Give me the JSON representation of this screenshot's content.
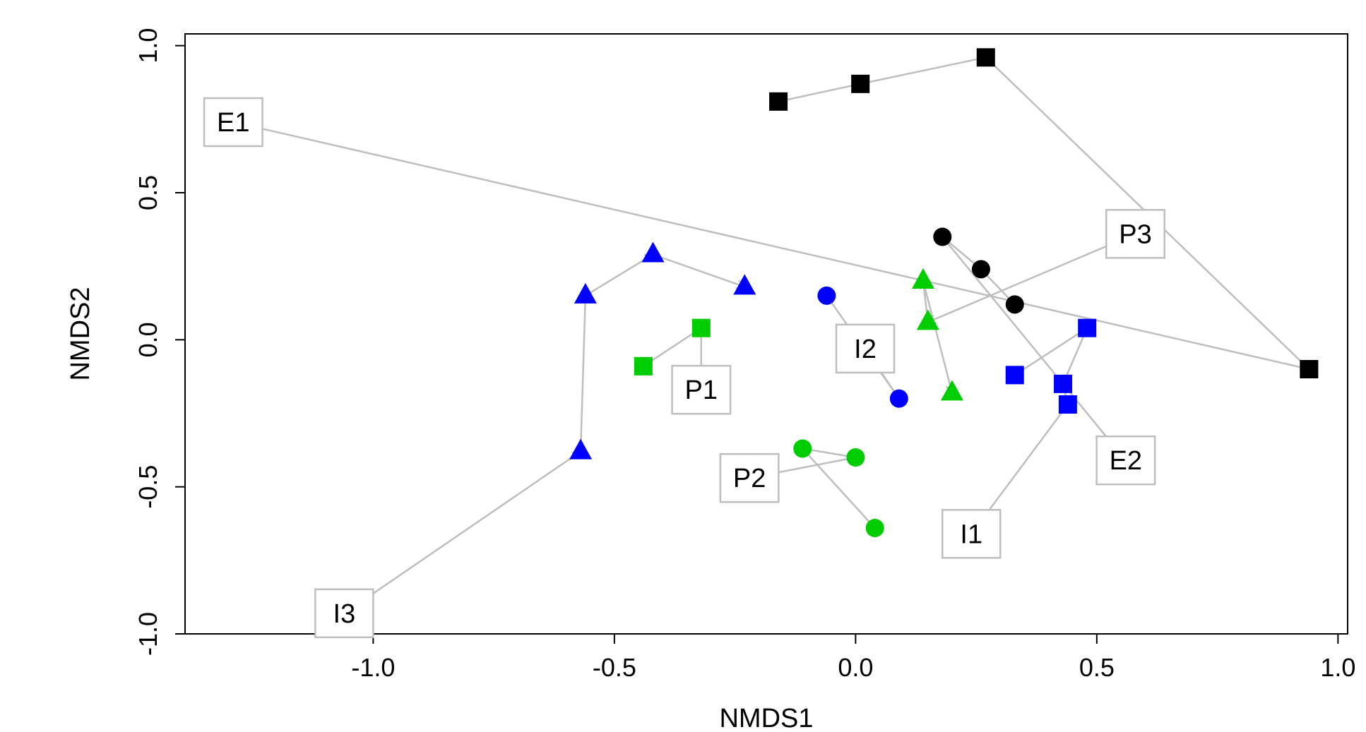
{
  "chart_data": {
    "type": "scatter",
    "xlabel": "NMDS1",
    "ylabel": "NMDS2",
    "xlim": [
      -1.39,
      1.02
    ],
    "ylim": [
      -1.0,
      1.04
    ],
    "xticks": [
      -1.0,
      -0.5,
      0.0,
      0.5,
      1.0
    ],
    "xtick_labels": [
      "-1.0",
      "-0.5",
      "0.0",
      "0.5",
      "1.0"
    ],
    "yticks": [
      -1.0,
      -0.5,
      0.0,
      0.5,
      1.0
    ],
    "ytick_labels": [
      "-1.0",
      "-0.5",
      "0.0",
      "0.5",
      "1.0"
    ],
    "grid": false,
    "arrow_color": "#bebebe",
    "colors": {
      "black": "#000000",
      "blue": "#0000ff",
      "green": "#00cd00"
    },
    "series": [
      {
        "id": "E1",
        "marker": "square",
        "color": "black",
        "points": [
          [
            -0.16,
            0.81
          ],
          [
            0.01,
            0.87
          ],
          [
            0.27,
            0.96
          ],
          [
            0.94,
            -0.1
          ]
        ]
      },
      {
        "id": "E2",
        "marker": "circle",
        "color": "black",
        "points": [
          [
            0.33,
            0.12
          ],
          [
            0.26,
            0.24
          ],
          [
            0.18,
            0.35
          ]
        ]
      },
      {
        "id": "I1",
        "marker": "square",
        "color": "blue",
        "points": [
          [
            0.33,
            -0.12
          ],
          [
            0.48,
            0.04
          ],
          [
            0.43,
            -0.15
          ],
          [
            0.44,
            -0.22
          ]
        ]
      },
      {
        "id": "I2",
        "marker": "circle",
        "color": "blue",
        "points": [
          [
            -0.06,
            0.15
          ],
          [
            0.09,
            -0.2
          ]
        ]
      },
      {
        "id": "I3",
        "marker": "triangle",
        "color": "blue",
        "points": [
          [
            -0.57,
            -0.38
          ],
          [
            -0.56,
            0.15
          ],
          [
            -0.42,
            0.29
          ],
          [
            -0.23,
            0.18
          ]
        ]
      },
      {
        "id": "P1",
        "marker": "square",
        "color": "green",
        "points": [
          [
            -0.32,
            0.04
          ],
          [
            -0.44,
            -0.09
          ]
        ]
      },
      {
        "id": "P2",
        "marker": "circle",
        "color": "green",
        "points": [
          [
            0.0,
            -0.4
          ],
          [
            -0.11,
            -0.37
          ],
          [
            0.04,
            -0.64
          ]
        ]
      },
      {
        "id": "P3",
        "marker": "triangle",
        "color": "green",
        "points": [
          [
            0.15,
            0.06
          ],
          [
            0.14,
            0.2
          ],
          [
            0.2,
            -0.18
          ]
        ]
      }
    ],
    "annotations": [
      {
        "text": "E1",
        "x": -1.29,
        "y": 0.74,
        "arrow_to": [
          0.94,
          -0.1
        ]
      },
      {
        "text": "E2",
        "x": 0.56,
        "y": -0.41,
        "arrow_to": [
          0.18,
          0.35
        ]
      },
      {
        "text": "I1",
        "x": 0.24,
        "y": -0.66,
        "arrow_to": [
          0.44,
          -0.22
        ]
      },
      {
        "text": "I2",
        "x": 0.02,
        "y": -0.03,
        "arrow_to": [
          0.09,
          -0.2
        ]
      },
      {
        "text": "I3",
        "x": -1.06,
        "y": -0.93,
        "arrow_to": [
          -0.57,
          -0.38
        ]
      },
      {
        "text": "P1",
        "x": -0.32,
        "y": -0.17,
        "arrow_to": [
          -0.32,
          0.04
        ]
      },
      {
        "text": "P2",
        "x": -0.22,
        "y": -0.47,
        "arrow_to": [
          0.0,
          -0.4
        ]
      },
      {
        "text": "P3",
        "x": 0.58,
        "y": 0.36,
        "arrow_to": [
          0.15,
          0.06
        ]
      }
    ]
  }
}
